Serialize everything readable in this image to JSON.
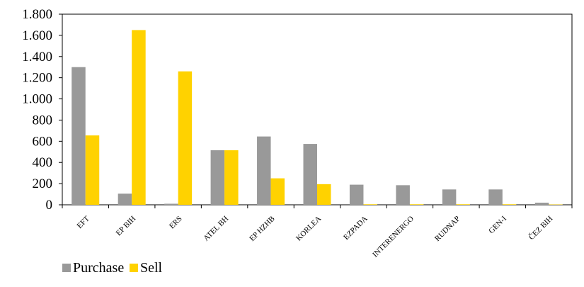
{
  "chart_data": {
    "type": "bar",
    "title": "",
    "xlabel": "",
    "ylabel": "",
    "ylim": [
      0,
      1800
    ],
    "yticks": [
      0,
      200,
      400,
      600,
      800,
      1000,
      1200,
      1400,
      1600,
      1800
    ],
    "ytick_labels": [
      "0",
      "200",
      "400",
      "600",
      "800",
      "1.000",
      "1.200",
      "1.400",
      "1.600",
      "1.800"
    ],
    "categories": [
      "EFT",
      "EP BIH",
      "ERS",
      "ATEL BH",
      "EP HZHB",
      "KORLEA",
      "EZPADA",
      "INTERENERGO",
      "RUDNAP",
      "GEN-I",
      "ČEZ BIH"
    ],
    "series": [
      {
        "name": "Purchase",
        "color": "#999999",
        "values": [
          1300,
          105,
          10,
          515,
          645,
          575,
          190,
          185,
          145,
          145,
          20
        ]
      },
      {
        "name": "Sell",
        "color": "#FFD200",
        "values": [
          655,
          1650,
          1260,
          515,
          250,
          195,
          5,
          5,
          5,
          5,
          3
        ]
      }
    ],
    "grid": false,
    "legend_position": "bottom-left"
  }
}
